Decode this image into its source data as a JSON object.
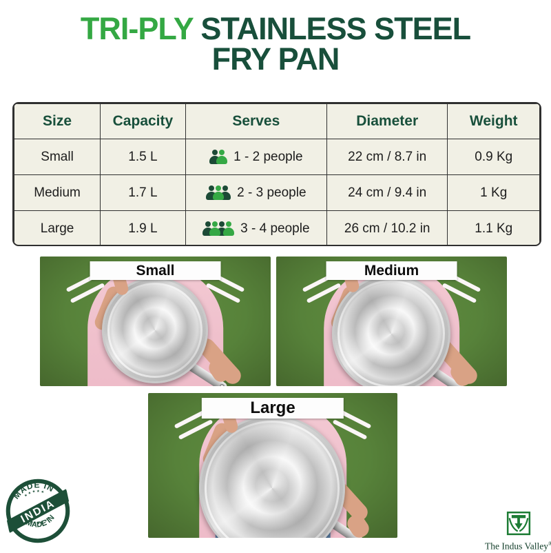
{
  "title": {
    "highlight": "TRI-PLY",
    "line1_rest": " STAINLESS STEEL",
    "line2": "FRY PAN"
  },
  "colors": {
    "bright_green": "#34a843",
    "dark_green": "#184f3b",
    "table_bg": "#f1f0e5",
    "table_border": "#2f2f2f",
    "photo_background_green": "#57823a",
    "shirt_pink": "#f3c9d3",
    "stamp_green": "#1d4f38",
    "logo_green": "#1d7c35"
  },
  "table": {
    "headers": [
      "Size",
      "Capacity",
      "Serves",
      "Diameter",
      "Weight"
    ],
    "rows": [
      {
        "size": "Small",
        "capacity": "1.5 L",
        "serves_label": "1 - 2 people",
        "serves_icons": [
          "dark",
          "green"
        ],
        "diameter": "22 cm / 8.7 in",
        "weight": "0.9 Kg"
      },
      {
        "size": "Medium",
        "capacity": "1.7 L",
        "serves_label": "2 - 3 people",
        "serves_icons": [
          "dark",
          "green",
          "dark"
        ],
        "diameter": "24 cm / 9.4 in",
        "weight": "1 Kg"
      },
      {
        "size": "Large",
        "capacity": "1.9 L",
        "serves_label": "3 - 4 people",
        "serves_icons": [
          "dark",
          "green",
          "dark",
          "green"
        ],
        "diameter": "26 cm / 10.2 in",
        "weight": "1.1 Kg"
      }
    ]
  },
  "photos": [
    {
      "label": "Small"
    },
    {
      "label": "Medium"
    },
    {
      "label": "Large"
    }
  ],
  "stamp": {
    "top": "MADE IN",
    "middle": "INDIA",
    "bottom": "MADE IN",
    "stars_top": "★ ★ ★ ★ ★",
    "stars_bottom": "★ ★ ★ ★"
  },
  "brand": {
    "name": "The Indus Valley",
    "reg": "®"
  }
}
